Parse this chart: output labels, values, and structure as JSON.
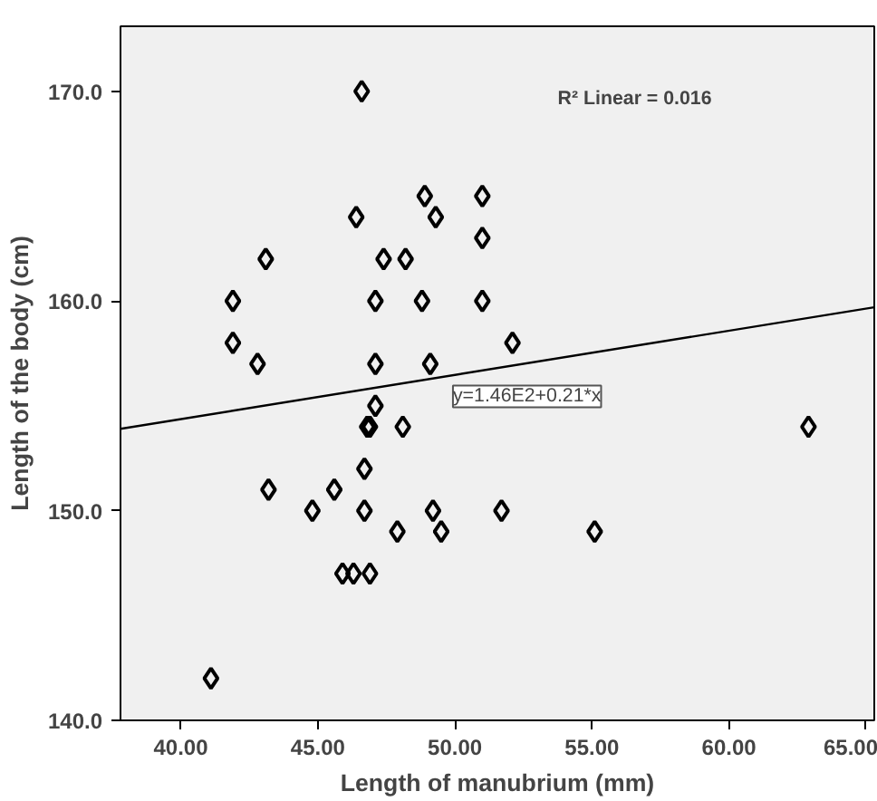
{
  "chart_data": {
    "type": "scatter",
    "xlabel": "Length of manubrium (mm)",
    "ylabel": "Length of the body (cm)",
    "xlim": [
      37.8,
      65.3
    ],
    "ylim": [
      140,
      173.1
    ],
    "xticks": [
      {
        "value": 40,
        "label": "40.00"
      },
      {
        "value": 45,
        "label": "45.00"
      },
      {
        "value": 50,
        "label": "50.00"
      },
      {
        "value": 55,
        "label": "55.00"
      },
      {
        "value": 60,
        "label": "60.00"
      },
      {
        "value": 65,
        "label": "65.00"
      }
    ],
    "yticks": [
      {
        "value": 140,
        "label": "140.0"
      },
      {
        "value": 150,
        "label": "150.0"
      },
      {
        "value": 160,
        "label": "160.0"
      },
      {
        "value": 170,
        "label": "170.0"
      }
    ],
    "grid": false,
    "series": [
      {
        "marker": "diamond",
        "color": "#000000",
        "x": [
          46.6,
          46.4,
          48.9,
          49.3,
          51.0,
          51.0,
          43.1,
          47.4,
          48.2,
          41.9,
          47.1,
          48.8,
          51.0,
          41.9,
          42.8,
          47.1,
          49.1,
          52.1,
          47.1,
          46.8,
          46.9,
          48.1,
          46.7,
          43.2,
          45.6,
          44.8,
          46.7,
          49.2,
          51.7,
          47.9,
          49.5,
          55.1,
          45.9,
          46.3,
          46.9,
          41.1,
          62.9
        ],
        "values": [
          170,
          164,
          165,
          164,
          165,
          163,
          162,
          162,
          162,
          160,
          160,
          160,
          160,
          158,
          157,
          157,
          157,
          158,
          155,
          154,
          154,
          154,
          152,
          151,
          151,
          150,
          150,
          150,
          150,
          149,
          149,
          149,
          147,
          147,
          147,
          142,
          154
        ]
      },
      {
        "type": "line",
        "color": "#000000",
        "x": [
          37.8,
          65.3
        ],
        "values": [
          153.9,
          159.7
        ]
      }
    ],
    "annotations": [
      "R² Linear = 0.016",
      {
        "text": "y=1.46E2+0.21*x",
        "x": 49.4,
        "y": 156.4
      }
    ]
  }
}
